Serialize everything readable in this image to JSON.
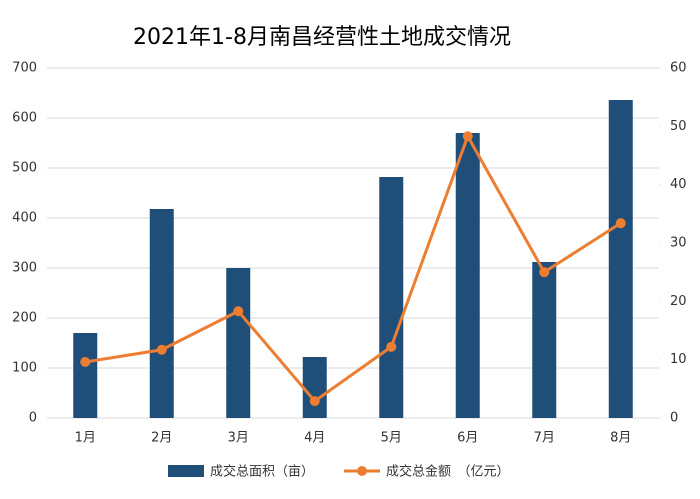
{
  "chart_data": {
    "type": "combo",
    "title": "2021年1-8月南昌经营性土地成交情况",
    "categories": [
      "1月",
      "2月",
      "3月",
      "4月",
      "5月",
      "6月",
      "7月",
      "8月"
    ],
    "series": [
      {
        "name": "成交总面积（亩）",
        "color": "#1f4e79",
        "type": "bar",
        "values": [
          170,
          418,
          300,
          122,
          482,
          570,
          312,
          636
        ]
      },
      {
        "name": "成交总金额　（亿元）",
        "color": "#ed7d31",
        "type": "line",
        "axis": "y2",
        "values": [
          9.6,
          11.7,
          18.3,
          2.9,
          12.2,
          48.3,
          25.0,
          33.4
        ]
      }
    ],
    "ylim": [
      0,
      700
    ],
    "yticks": [
      0,
      100,
      200,
      300,
      400,
      500,
      600,
      700
    ],
    "y2lim": [
      0,
      60
    ],
    "y2ticks": [
      0,
      10,
      20,
      30,
      40,
      50,
      60
    ],
    "grid": true,
    "legend": "bottom"
  }
}
